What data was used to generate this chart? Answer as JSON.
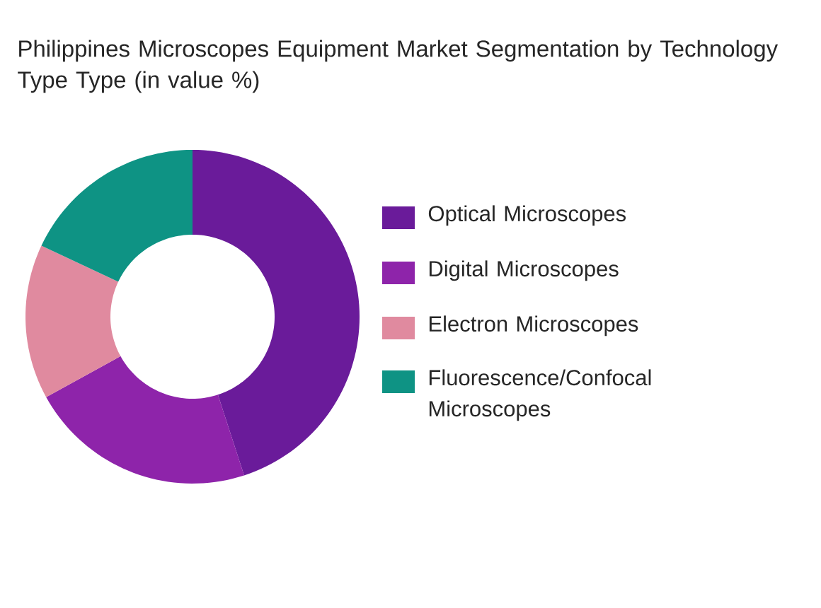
{
  "chart_data": {
    "type": "donut",
    "title": "Philippines Microscopes Equipment Market Segmentation by Technology Type Type (in value %)",
    "categories": [
      "Optical Microscopes",
      "Digital Microscopes",
      "Electron Microscopes",
      "Fluorescence/Confocal Microscopes"
    ],
    "values": [
      45,
      22,
      15,
      18
    ],
    "colors": [
      "#6a1b9a",
      "#8e24aa",
      "#e08a9f",
      "#0e9384"
    ],
    "legend": "right"
  }
}
